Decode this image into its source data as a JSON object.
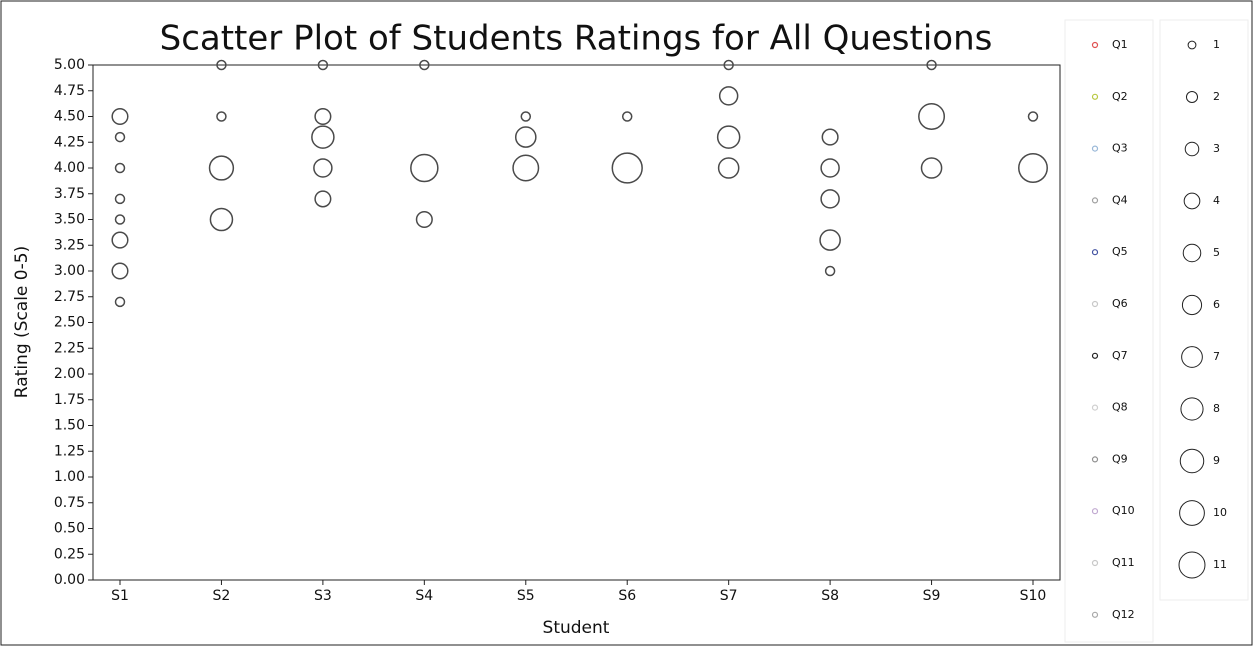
{
  "chart_data": {
    "type": "scatter",
    "title": "Scatter Plot of Students Ratings for All Questions",
    "xlabel": "Student",
    "ylabel": "Rating (Scale 0-5)",
    "categories": [
      "S1",
      "S2",
      "S3",
      "S4",
      "S5",
      "S6",
      "S7",
      "S8",
      "S9",
      "S10"
    ],
    "ylim": [
      0,
      5
    ],
    "yticks": [
      {
        "value": 0,
        "label": "0.00"
      },
      {
        "value": 0.25,
        "label": "0.25"
      },
      {
        "value": 0.5,
        "label": "0.50"
      },
      {
        "value": 0.75,
        "label": "0.75"
      },
      {
        "value": 1,
        "label": "1.00"
      },
      {
        "value": 1.25,
        "label": "1.25"
      },
      {
        "value": 1.5,
        "label": "1.50"
      },
      {
        "value": 1.75,
        "label": "1.75"
      },
      {
        "value": 2,
        "label": "2.00"
      },
      {
        "value": 2.25,
        "label": "2.25"
      },
      {
        "value": 2.5,
        "label": "2.50"
      },
      {
        "value": 2.75,
        "label": "2.75"
      },
      {
        "value": 3,
        "label": "3.00"
      },
      {
        "value": 3.25,
        "label": "3.25"
      },
      {
        "value": 3.5,
        "label": "3.50"
      },
      {
        "value": 3.75,
        "label": "3.75"
      },
      {
        "value": 4,
        "label": "4.00"
      },
      {
        "value": 4.25,
        "label": "4.25"
      },
      {
        "value": 4.5,
        "label": "4.50"
      },
      {
        "value": 4.75,
        "label": "4.75"
      },
      {
        "value": 5,
        "label": "5.00"
      }
    ],
    "point_color": "#4a4a4a",
    "legend": [
      {
        "name": "Q1",
        "color": "#e05050"
      },
      {
        "name": "Q2",
        "color": "#b8c840"
      },
      {
        "name": "Q3",
        "color": "#9ab8d8"
      },
      {
        "name": "Q4",
        "color": "#a0a0a0"
      },
      {
        "name": "Q5",
        "color": "#4050a0"
      },
      {
        "name": "Q6",
        "color": "#c8c8c8"
      },
      {
        "name": "Q7",
        "color": "#202020"
      },
      {
        "name": "Q8",
        "color": "#d0d0d0"
      },
      {
        "name": "Q9",
        "color": "#909090"
      },
      {
        "name": "Q10",
        "color": "#c0a8d0"
      },
      {
        "name": "Q11",
        "color": "#c8c8c8"
      },
      {
        "name": "Q12",
        "color": "#a8a8a8"
      }
    ],
    "size_legend": [
      1,
      2,
      3,
      4,
      5,
      6,
      7,
      8,
      9,
      10,
      11
    ],
    "points": [
      {
        "x": "S1",
        "y": 4.5,
        "size": 3
      },
      {
        "x": "S1",
        "y": 4.3,
        "size": 1
      },
      {
        "x": "S1",
        "y": 4.0,
        "size": 1
      },
      {
        "x": "S1",
        "y": 3.7,
        "size": 1
      },
      {
        "x": "S1",
        "y": 3.5,
        "size": 1
      },
      {
        "x": "S1",
        "y": 3.3,
        "size": 3
      },
      {
        "x": "S1",
        "y": 3.0,
        "size": 3
      },
      {
        "x": "S1",
        "y": 2.7,
        "size": 1
      },
      {
        "x": "S2",
        "y": 5.0,
        "size": 1
      },
      {
        "x": "S2",
        "y": 4.5,
        "size": 1
      },
      {
        "x": "S2",
        "y": 4.0,
        "size": 7
      },
      {
        "x": "S2",
        "y": 3.5,
        "size": 6
      },
      {
        "x": "S3",
        "y": 5.0,
        "size": 1
      },
      {
        "x": "S3",
        "y": 4.5,
        "size": 3
      },
      {
        "x": "S3",
        "y": 4.3,
        "size": 6
      },
      {
        "x": "S3",
        "y": 4.0,
        "size": 4
      },
      {
        "x": "S3",
        "y": 3.7,
        "size": 3
      },
      {
        "x": "S4",
        "y": 5.0,
        "size": 1
      },
      {
        "x": "S4",
        "y": 4.0,
        "size": 9
      },
      {
        "x": "S4",
        "y": 3.5,
        "size": 3
      },
      {
        "x": "S5",
        "y": 4.5,
        "size": 1
      },
      {
        "x": "S5",
        "y": 4.3,
        "size": 5
      },
      {
        "x": "S5",
        "y": 4.0,
        "size": 8
      },
      {
        "x": "S6",
        "y": 4.5,
        "size": 1
      },
      {
        "x": "S6",
        "y": 4.0,
        "size": 11
      },
      {
        "x": "S7",
        "y": 5.0,
        "size": 1
      },
      {
        "x": "S7",
        "y": 4.7,
        "size": 4
      },
      {
        "x": "S7",
        "y": 4.3,
        "size": 6
      },
      {
        "x": "S7",
        "y": 4.0,
        "size": 5
      },
      {
        "x": "S8",
        "y": 4.3,
        "size": 3
      },
      {
        "x": "S8",
        "y": 4.0,
        "size": 4
      },
      {
        "x": "S8",
        "y": 3.7,
        "size": 4
      },
      {
        "x": "S8",
        "y": 3.3,
        "size": 5
      },
      {
        "x": "S8",
        "y": 3.0,
        "size": 1
      },
      {
        "x": "S9",
        "y": 5.0,
        "size": 1
      },
      {
        "x": "S9",
        "y": 4.5,
        "size": 8
      },
      {
        "x": "S9",
        "y": 4.0,
        "size": 5
      },
      {
        "x": "S10",
        "y": 4.5,
        "size": 1
      },
      {
        "x": "S10",
        "y": 4.0,
        "size": 10
      }
    ]
  }
}
